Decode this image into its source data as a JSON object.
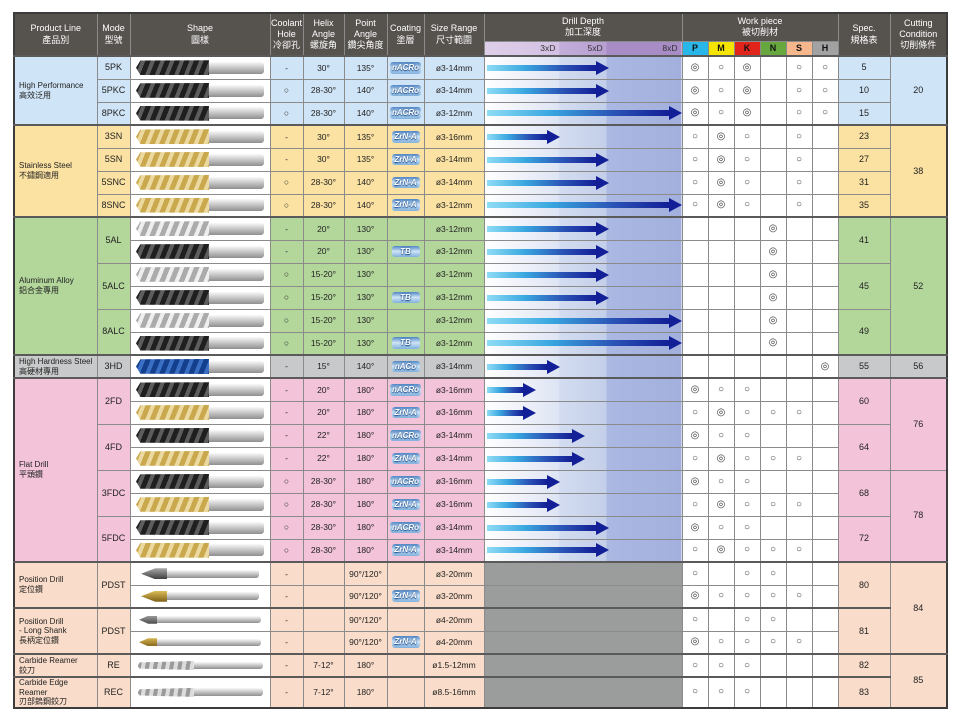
{
  "columns": {
    "product": {
      "en": "Product Line",
      "zh": "產品別"
    },
    "mode": {
      "en": "Mode",
      "zh": "型號"
    },
    "shape": {
      "en": "Shape",
      "zh": "圖樣"
    },
    "coolant": {
      "en": "Coolant\nHole",
      "zh": "冷卻孔"
    },
    "helix": {
      "en": "Helix\nAngle",
      "zh": "螺旋角"
    },
    "point": {
      "en": "Point\nAngle",
      "zh": "鑽尖角度"
    },
    "coating": {
      "en": "Coating",
      "zh": "塗層"
    },
    "size": {
      "en": "Size Range",
      "zh": "尺寸範圍"
    },
    "depth": {
      "en": "Drill Depth",
      "zh": "加工深度"
    },
    "workpiece": {
      "en": "Work piece",
      "zh": "被切削材"
    },
    "spec": {
      "en": "Spec.",
      "zh": "規格表"
    },
    "cutting": {
      "en": "Cutting\nCondition",
      "zh": "切削條件"
    }
  },
  "depth_scale": [
    "3xD",
    "5xD",
    "8xD"
  ],
  "workpiece_headers": [
    {
      "label": "P",
      "color": "#29b6e8"
    },
    {
      "label": "M",
      "color": "#f5e400"
    },
    {
      "label": "K",
      "color": "#e1251b"
    },
    {
      "label": "N",
      "color": "#66a83e"
    },
    {
      "label": "S",
      "color": "#f6b78c"
    },
    {
      "label": "H",
      "color": "#a2a2a2"
    }
  ],
  "palette": {
    "hp": "#cfe4f6",
    "ss": "#fbe2a2",
    "al": "#b3d69b",
    "hh": "#c8c9ca",
    "fd": "#f2c3d9",
    "pd": "#f9dcc9"
  },
  "arrow_colors": {
    "start": "#8edcf5",
    "end": "#131f96"
  },
  "marks": {
    "double_circle": "◎",
    "circle": "○",
    "dash": "-"
  },
  "rows": [
    {
      "g": "hp",
      "product": {
        "en": "High Performance",
        "zh": "高效泛用",
        "span": 3
      },
      "mode": {
        "label": "5PK",
        "span": 1
      },
      "shape": "dark",
      "coolant": "-",
      "helix": "30°",
      "point": "135°",
      "coating": "nACRo",
      "size": "ø3-14mm",
      "depth": 5,
      "wp": [
        "◎",
        "○",
        "◎",
        "",
        "○",
        "○"
      ],
      "spec": {
        "label": "5",
        "span": 1
      },
      "cutting": {
        "label": "20",
        "span": 3
      }
    },
    {
      "g": "hp",
      "mode": {
        "label": "5PKC",
        "span": 1
      },
      "shape": "dark",
      "coolant": "○",
      "helix": "28-30°",
      "point": "140°",
      "coating": "nACRo",
      "size": "ø3-14mm",
      "depth": 5,
      "wp": [
        "◎",
        "○",
        "◎",
        "",
        "○",
        "○"
      ],
      "spec": {
        "label": "10",
        "span": 1
      }
    },
    {
      "g": "hp",
      "mode": {
        "label": "8PKC",
        "span": 1
      },
      "shape": "dark",
      "coolant": "○",
      "helix": "28-30°",
      "point": "140°",
      "coating": "nACRo",
      "size": "ø3-12mm",
      "depth": 8,
      "wp": [
        "◎",
        "○",
        "◎",
        "",
        "○",
        "○"
      ],
      "spec": {
        "label": "15",
        "span": 1
      }
    },
    {
      "g": "ss",
      "product": {
        "en": "Stainless Steel",
        "zh": "不鏽鋼適用",
        "span": 4
      },
      "mode": {
        "label": "3SN",
        "span": 1
      },
      "shape": "gold",
      "coolant": "-",
      "helix": "30°",
      "point": "135°",
      "coating": "ZrN-A",
      "size": "ø3-16mm",
      "depth": 3,
      "wp": [
        "○",
        "◎",
        "○",
        "",
        "○",
        ""
      ],
      "spec": {
        "label": "23",
        "span": 1
      },
      "cutting": {
        "label": "38",
        "span": 4
      }
    },
    {
      "g": "ss",
      "mode": {
        "label": "5SN",
        "span": 1
      },
      "shape": "gold",
      "coolant": "-",
      "helix": "30°",
      "point": "135°",
      "coating": "ZrN-A",
      "size": "ø3-14mm",
      "depth": 5,
      "wp": [
        "○",
        "◎",
        "○",
        "",
        "○",
        ""
      ],
      "spec": {
        "label": "27",
        "span": 1
      }
    },
    {
      "g": "ss",
      "mode": {
        "label": "5SNC",
        "span": 1
      },
      "shape": "gold",
      "coolant": "○",
      "helix": "28-30°",
      "point": "140°",
      "coating": "ZrN-A",
      "size": "ø3-14mm",
      "depth": 5,
      "wp": [
        "○",
        "◎",
        "○",
        "",
        "○",
        ""
      ],
      "spec": {
        "label": "31",
        "span": 1
      }
    },
    {
      "g": "ss",
      "mode": {
        "label": "8SNC",
        "span": 1
      },
      "shape": "gold",
      "coolant": "○",
      "helix": "28-30°",
      "point": "140°",
      "coating": "ZrN-A",
      "size": "ø3-12mm",
      "depth": 8,
      "wp": [
        "○",
        "◎",
        "○",
        "",
        "○",
        ""
      ],
      "spec": {
        "label": "35",
        "span": 1
      }
    },
    {
      "g": "al",
      "product": {
        "en": "Aluminum Alloy",
        "zh": "鋁合金專用",
        "span": 6
      },
      "mode": {
        "label": "5AL",
        "span": 2
      },
      "shape": "silver",
      "coolant": "-",
      "helix": "20°",
      "point": "130°",
      "coating": "",
      "size": "ø3-12mm",
      "depth": 5,
      "wp": [
        "",
        "",
        "",
        "◎",
        "",
        ""
      ],
      "spec": {
        "label": "41",
        "span": 2
      },
      "cutting": {
        "label": "52",
        "span": 6
      }
    },
    {
      "g": "al",
      "shape": "dark",
      "coolant": "-",
      "helix": "20°",
      "point": "130°",
      "coating": "TB",
      "size": "ø3-12mm",
      "depth": 5,
      "wp": [
        "",
        "",
        "",
        "◎",
        "",
        ""
      ]
    },
    {
      "g": "al",
      "mode": {
        "label": "5ALC",
        "span": 2
      },
      "shape": "silver",
      "coolant": "○",
      "helix": "15-20°",
      "point": "130°",
      "coating": "",
      "size": "ø3-12mm",
      "depth": 5,
      "wp": [
        "",
        "",
        "",
        "◎",
        "",
        ""
      ],
      "spec": {
        "label": "45",
        "span": 2
      }
    },
    {
      "g": "al",
      "shape": "dark",
      "coolant": "○",
      "helix": "15-20°",
      "point": "130°",
      "coating": "TB",
      "size": "ø3-12mm",
      "depth": 5,
      "wp": [
        "",
        "",
        "",
        "◎",
        "",
        ""
      ]
    },
    {
      "g": "al",
      "mode": {
        "label": "8ALC",
        "span": 2
      },
      "shape": "silver",
      "coolant": "○",
      "helix": "15-20°",
      "point": "130°",
      "coating": "",
      "size": "ø3-12mm",
      "depth": 8,
      "wp": [
        "",
        "",
        "",
        "◎",
        "",
        ""
      ],
      "spec": {
        "label": "49",
        "span": 2
      }
    },
    {
      "g": "al",
      "shape": "dark",
      "coolant": "○",
      "helix": "15-20°",
      "point": "130°",
      "coating": "TB",
      "size": "ø3-12mm",
      "depth": 8,
      "wp": [
        "",
        "",
        "",
        "◎",
        "",
        ""
      ]
    },
    {
      "g": "hh",
      "product": {
        "en": "High Hardness Steel",
        "zh": "高硬材專用",
        "span": 1
      },
      "mode": {
        "label": "3HD",
        "span": 1
      },
      "shape": "blue",
      "coolant": "-",
      "helix": "15°",
      "point": "140°",
      "coating": "nACo",
      "size": "ø3-14mm",
      "depth": 3,
      "wp": [
        "",
        "",
        "",
        "",
        "",
        "◎"
      ],
      "spec": {
        "label": "55",
        "span": 1
      },
      "cutting": {
        "label": "56",
        "span": 1
      }
    },
    {
      "g": "fd",
      "product": {
        "en": "Flat Drill",
        "zh": "平頭鑽",
        "span": 8
      },
      "mode": {
        "label": "2FD",
        "span": 2
      },
      "shape": "dark",
      "coolant": "-",
      "helix": "20°",
      "point": "180°",
      "coating": "nACRo",
      "size": "ø3-16mm",
      "depth": 2,
      "wp": [
        "◎",
        "○",
        "○",
        "",
        "",
        ""
      ],
      "spec": {
        "label": "60",
        "span": 2
      },
      "cutting": {
        "label": "76",
        "span": 4
      }
    },
    {
      "g": "fd",
      "shape": "gold",
      "coolant": "-",
      "helix": "20°",
      "point": "180°",
      "coating": "ZrN-A",
      "size": "ø3-16mm",
      "depth": 2,
      "wp": [
        "○",
        "◎",
        "○",
        "○",
        "○",
        ""
      ]
    },
    {
      "g": "fd",
      "mode": {
        "label": "4FD",
        "span": 2
      },
      "shape": "dark",
      "coolant": "-",
      "helix": "22°",
      "point": "180°",
      "coating": "nACRo",
      "size": "ø3-14mm",
      "depth": 4,
      "wp": [
        "◎",
        "○",
        "○",
        "",
        "",
        ""
      ],
      "spec": {
        "label": "64",
        "span": 2
      }
    },
    {
      "g": "fd",
      "shape": "gold",
      "coolant": "-",
      "helix": "22°",
      "point": "180°",
      "coating": "ZrN-A",
      "size": "ø3-14mm",
      "depth": 4,
      "wp": [
        "○",
        "◎",
        "○",
        "○",
        "○",
        ""
      ]
    },
    {
      "g": "fd",
      "mode": {
        "label": "3FDC",
        "span": 2
      },
      "shape": "dark",
      "coolant": "○",
      "helix": "28-30°",
      "point": "180°",
      "coating": "nACRo",
      "size": "ø3-16mm",
      "depth": 3,
      "wp": [
        "◎",
        "○",
        "○",
        "",
        "",
        ""
      ],
      "spec": {
        "label": "68",
        "span": 2
      },
      "cutting": {
        "label": "78",
        "span": 4
      }
    },
    {
      "g": "fd",
      "shape": "gold",
      "coolant": "○",
      "helix": "28-30°",
      "point": "180°",
      "coating": "ZrN-A",
      "size": "ø3-16mm",
      "depth": 3,
      "wp": [
        "○",
        "◎",
        "○",
        "○",
        "○",
        ""
      ]
    },
    {
      "g": "fd",
      "mode": {
        "label": "5FDC",
        "span": 2
      },
      "shape": "dark",
      "coolant": "○",
      "helix": "28-30°",
      "point": "180°",
      "coating": "nACRo",
      "size": "ø3-14mm",
      "depth": 5,
      "wp": [
        "◎",
        "○",
        "○",
        "",
        "",
        ""
      ],
      "spec": {
        "label": "72",
        "span": 2
      }
    },
    {
      "g": "fd",
      "shape": "gold",
      "coolant": "○",
      "helix": "28-30°",
      "point": "180°",
      "coating": "ZrN-A",
      "size": "ø3-14mm",
      "depth": 5,
      "wp": [
        "○",
        "◎",
        "○",
        "○",
        "○",
        ""
      ]
    },
    {
      "g": "pd",
      "product": {
        "en": "Position Drill",
        "zh": "定位鑽",
        "span": 2
      },
      "mode": {
        "label": "PDST",
        "span": 2
      },
      "shape": "point-silver",
      "coolant": "-",
      "helix": "",
      "point": "90°/120°",
      "coating": "",
      "size": "ø3-20mm",
      "depth": null,
      "wp": [
        "○",
        "",
        "○",
        "○",
        "",
        ""
      ],
      "spec": {
        "label": "80",
        "span": 2
      },
      "cutting": {
        "label": "84",
        "span": 4
      }
    },
    {
      "g": "pd",
      "shape": "point-gold",
      "coolant": "-",
      "helix": "",
      "point": "90°/120°",
      "coating": "ZrN-A",
      "size": "ø3-20mm",
      "depth": null,
      "wp": [
        "◎",
        "○",
        "○",
        "○",
        "○",
        ""
      ]
    },
    {
      "g": "pd",
      "product": {
        "en": "Position Drill\n- Long Shank",
        "zh": "長柄定位鑽",
        "span": 2
      },
      "mode": {
        "label": "PDST",
        "span": 2
      },
      "shape": "rod-silver",
      "coolant": "-",
      "helix": "",
      "point": "90°/120°",
      "coating": "",
      "size": "ø4-20mm",
      "depth": null,
      "wp": [
        "○",
        "",
        "○",
        "○",
        "",
        ""
      ],
      "spec": {
        "label": "81",
        "span": 2
      }
    },
    {
      "g": "pd",
      "shape": "rod-gold",
      "coolant": "-",
      "helix": "",
      "point": "90°/120°",
      "coating": "ZrN-A",
      "size": "ø4-20mm",
      "depth": null,
      "wp": [
        "◎",
        "○",
        "○",
        "○",
        "○",
        ""
      ]
    },
    {
      "g": "pd",
      "product": {
        "en": "Carbide Reamer",
        "zh": "鉸刀",
        "span": 1
      },
      "mode": {
        "label": "RE",
        "span": 1
      },
      "shape": "reamer",
      "coolant": "-",
      "helix": "7-12°",
      "point": "180°",
      "coating": "",
      "size": "ø1.5-12mm",
      "depth": null,
      "wp": [
        "○",
        "○",
        "○",
        "",
        "",
        ""
      ],
      "spec": {
        "label": "82",
        "span": 1
      },
      "cutting": {
        "label": "85",
        "span": 2
      }
    },
    {
      "g": "pd",
      "product": {
        "en": "Carbide Edge Reamer",
        "zh": "刃部鎢鋼鉸刀",
        "span": 1
      },
      "mode": {
        "label": "REC",
        "span": 1
      },
      "shape": "reamer",
      "coolant": "-",
      "helix": "7-12°",
      "point": "180°",
      "coating": "",
      "size": "ø8.5-16mm",
      "depth": null,
      "wp": [
        "○",
        "○",
        "○",
        "",
        "",
        ""
      ],
      "spec": {
        "label": "83",
        "span": 1
      }
    }
  ]
}
